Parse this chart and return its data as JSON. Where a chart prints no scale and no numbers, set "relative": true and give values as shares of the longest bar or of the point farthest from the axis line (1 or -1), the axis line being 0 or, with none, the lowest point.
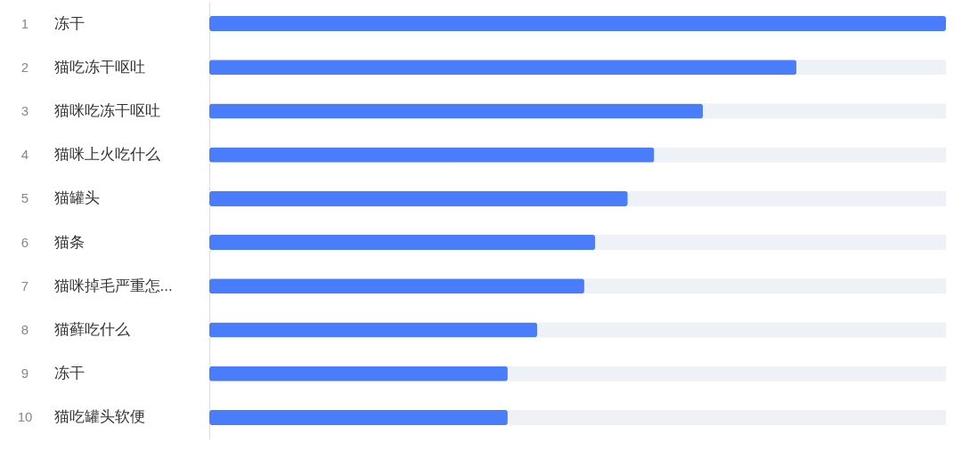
{
  "chart_data": {
    "type": "bar",
    "orientation": "horizontal",
    "relative": true,
    "categories": [
      "冻干",
      "猫吃冻干呕吐",
      "猫咪吃冻干呕吐",
      "猫咪上火吃什么",
      "猫罐头",
      "猫条",
      "猫咪掉毛严重怎...",
      "猫藓吃什么",
      "冻干",
      "猫吃罐头软便"
    ],
    "series": [
      {
        "color": "#4a7dfc",
        "values": [
          1,
          0.797,
          0.67,
          0.604,
          0.568,
          0.524,
          0.509,
          0.445,
          0.405,
          0.405
        ]
      }
    ],
    "annotations": [
      "1",
      "2",
      "3",
      "4",
      "5",
      "6",
      "7",
      "8",
      "9",
      "10"
    ]
  }
}
